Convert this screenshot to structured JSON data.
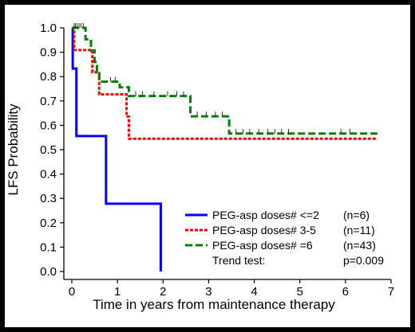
{
  "chart_data": {
    "type": "line",
    "subtype": "kaplan-meier step",
    "xlabel": "Time in years from maintenance therapy",
    "ylabel": "LFS Probability",
    "xlim": [
      0,
      7
    ],
    "ylim": [
      0,
      1.0
    ],
    "xticks": [
      "0",
      "1",
      "2",
      "3",
      "4",
      "5",
      "6",
      "7"
    ],
    "yticks": [
      "0.0",
      "0.1",
      "0.2",
      "0.3",
      "0.4",
      "0.5",
      "0.6",
      "0.7",
      "0.8",
      "0.9",
      "1.0"
    ],
    "grid": false,
    "legend_position": "bottom-right",
    "series": [
      {
        "name": "PEG-asp doses# <=2",
        "n": "(n=6)",
        "color": "#0000ff",
        "dash": "solid",
        "steps": [
          [
            0,
            1.0
          ],
          [
            0.02,
            0.833
          ],
          [
            0.1,
            0.556
          ],
          [
            0.75,
            0.278
          ],
          [
            1.95,
            0.0
          ]
        ],
        "end_x": 1.95,
        "censors": []
      },
      {
        "name": "PEG-asp doses# 3-5",
        "n": "(n=11)",
        "color": "#ff0000",
        "dash": "dotted",
        "steps": [
          [
            0,
            1.0
          ],
          [
            0.05,
            0.909
          ],
          [
            0.45,
            0.818
          ],
          [
            0.6,
            0.727
          ],
          [
            1.2,
            0.636
          ],
          [
            1.25,
            0.545
          ]
        ],
        "end_x": 6.7,
        "censors": []
      },
      {
        "name": "PEG-asp doses# =6",
        "n": "(n=43)",
        "color": "#008000",
        "dash": "dashed",
        "steps": [
          [
            0,
            1.0
          ],
          [
            0.3,
            0.953
          ],
          [
            0.42,
            0.907
          ],
          [
            0.5,
            0.86
          ],
          [
            0.55,
            0.814
          ],
          [
            0.6,
            0.779
          ],
          [
            1.05,
            0.756
          ],
          [
            1.25,
            0.72
          ],
          [
            2.6,
            0.637
          ],
          [
            3.45,
            0.566
          ]
        ],
        "end_x": 6.7,
        "censors": [
          0.05,
          0.08,
          0.12,
          0.16,
          0.2,
          0.25,
          0.85,
          0.95,
          1.4,
          1.55,
          1.8,
          2.1,
          2.3,
          2.45,
          2.75,
          2.95,
          3.15,
          3.3,
          3.6,
          3.75,
          3.9,
          4.1,
          4.3,
          4.45,
          4.6,
          4.75,
          5.9,
          6.1
        ]
      }
    ],
    "legend_extra": {
      "label": "Trend test:",
      "value": "p=0.009"
    }
  }
}
